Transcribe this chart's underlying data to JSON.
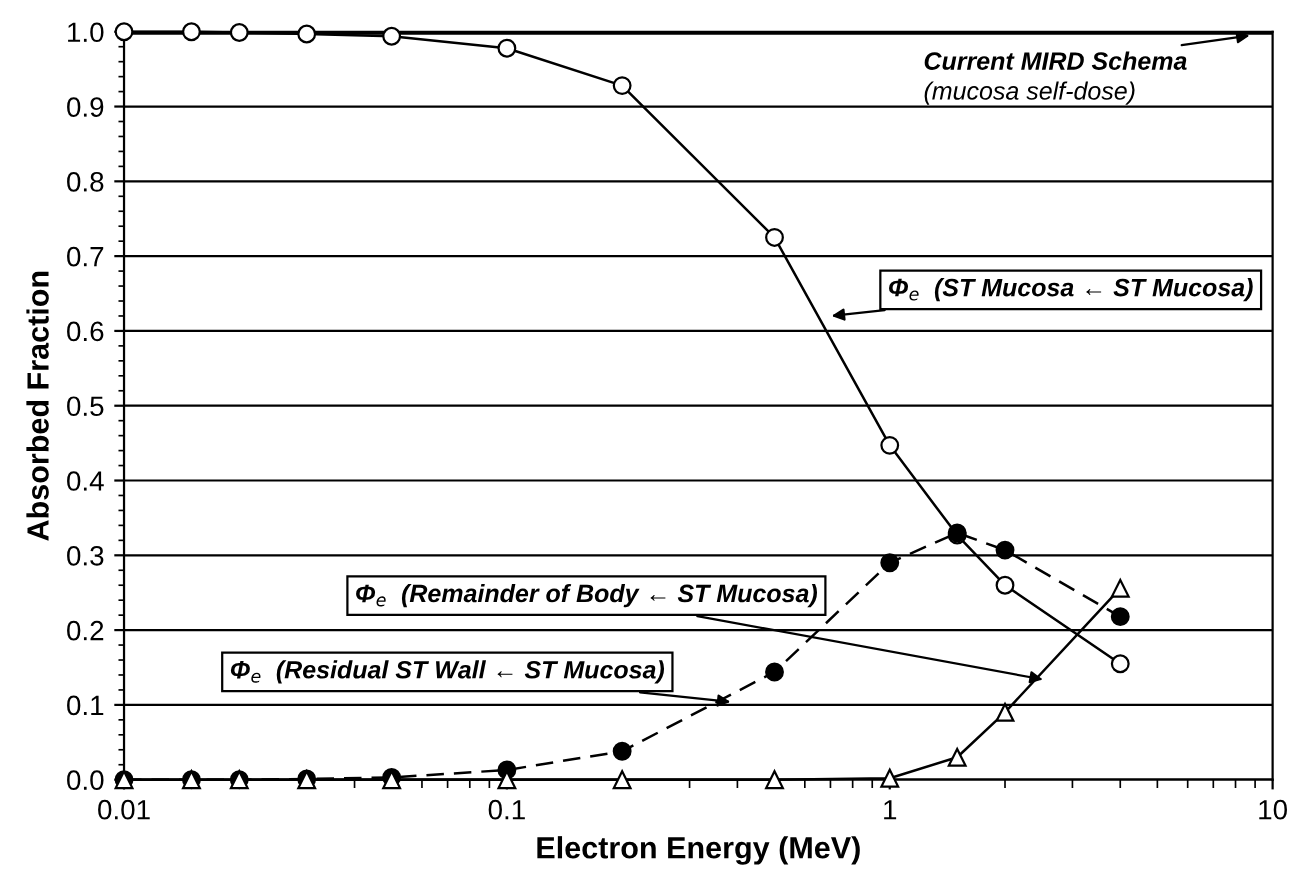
{
  "chart_data": {
    "type": "line",
    "xlabel": "Electron Energy (MeV)",
    "ylabel": "Absorbed Fraction",
    "x": [
      0.01,
      0.015,
      0.02,
      0.03,
      0.05,
      0.1,
      0.2,
      0.5,
      1,
      1.5,
      2,
      4
    ],
    "series": [
      {
        "name": "Φ$_{e}$  (ST Mucosa ← ST Mucosa)",
        "color": "#000000",
        "marker": "circle",
        "line_style": "solid",
        "values": [
          1.0,
          1.0,
          0.999,
          0.997,
          0.994,
          0.978,
          0.928,
          0.725,
          0.447,
          0.327,
          0.26,
          0.155
        ]
      },
      {
        "name": "Φ$_{e}$  (Residual ST Wall ← ST Mucosa)",
        "color": "#000000",
        "marker": "circle",
        "line_style": "dashed",
        "values": [
          0,
          0,
          0,
          0.001,
          0.003,
          0.013,
          0.038,
          0.144,
          0.29,
          0.33,
          0.307,
          0.218
        ]
      },
      {
        "name": "Φ$_{e}$  (Remainder of Body ← ST Mucosa)",
        "color": "#000000",
        "marker": "triangle",
        "line_style": "solid",
        "values": [
          0,
          0,
          0,
          0,
          0,
          0,
          0,
          0,
          0.002,
          0.03,
          0.09,
          0.256
        ]
      }
    ],
    "ref_lines": [
      {
        "axis": "y",
        "value": 1.0,
        "label": "Current MIRD Schema",
        "color": "#000000",
        "line_style": "solid"
      }
    ],
    "annotations": [
      "(mucosa self-dose)"
    ],
    "log": "x",
    "xlim": [
      0.01,
      10
    ],
    "xticks": [
      0.01,
      0.1,
      1,
      10
    ],
    "ylim": [
      0,
      1.0
    ],
    "yticks": [
      {
        "value": 0,
        "label": "0.0"
      },
      {
        "value": 0.1,
        "label": "0.1"
      },
      {
        "value": 0.2,
        "label": "0.2"
      },
      {
        "value": 0.3,
        "label": "0.3"
      },
      {
        "value": 0.4,
        "label": "0.4"
      },
      {
        "value": 0.5,
        "label": "0.5"
      },
      {
        "value": 0.6,
        "label": "0.6"
      },
      {
        "value": 0.7,
        "label": "0.7"
      },
      {
        "value": 0.8,
        "label": "0.8"
      },
      {
        "value": 0.9,
        "label": "0.9"
      },
      {
        "value": 1.0,
        "label": "1.0"
      }
    ],
    "grid": "y",
    "legend": false
  }
}
